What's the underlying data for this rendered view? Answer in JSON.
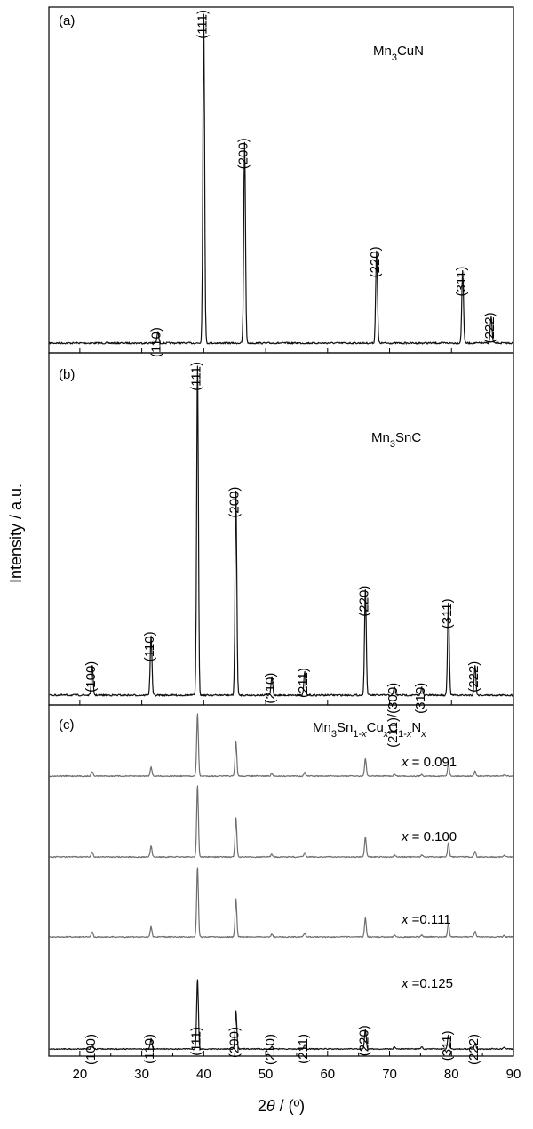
{
  "chart_data": {
    "type": "line",
    "x_axis": {
      "label_prefix": "2",
      "label_theta": "θ",
      "label_suffix": " / (º)",
      "range": [
        15,
        90
      ],
      "ticks": [
        20,
        30,
        40,
        50,
        60,
        70,
        80,
        90
      ]
    },
    "y_axis": {
      "label": "Intensity / a.u."
    },
    "colors": {
      "dark_trace": "#111111",
      "gray_trace": "#6e6e6e"
    },
    "panels": [
      {
        "tag": "(a)",
        "sample_parts": [
          {
            "t": "Mn",
            "sub": false
          },
          {
            "t": "3",
            "sub": true
          },
          {
            "t": "CuN",
            "sub": false
          }
        ],
        "peaks": [
          {
            "hkl": "(110)",
            "x": 32.6,
            "h": 0.035
          },
          {
            "hkl": "(111)",
            "x": 40.0,
            "h": 1.0
          },
          {
            "hkl": "(200)",
            "x": 46.6,
            "h": 0.61
          },
          {
            "hkl": "(220)",
            "x": 67.9,
            "h": 0.28
          },
          {
            "hkl": "(311)",
            "x": 81.8,
            "h": 0.22
          },
          {
            "hkl": "(222)",
            "x": 86.4,
            "h": 0.08
          }
        ]
      },
      {
        "tag": "(b)",
        "sample_parts": [
          {
            "t": "Mn",
            "sub": false
          },
          {
            "t": "3",
            "sub": true
          },
          {
            "t": "SnC",
            "sub": false
          }
        ],
        "peaks": [
          {
            "hkl": "(100)",
            "x": 22.0,
            "h": 0.09
          },
          {
            "hkl": "(110)",
            "x": 31.5,
            "h": 0.18
          },
          {
            "hkl": "(111)",
            "x": 39.0,
            "h": 1.0
          },
          {
            "hkl": "(200)",
            "x": 45.2,
            "h": 0.62
          },
          {
            "hkl": "(210)",
            "x": 51.0,
            "h": 0.055
          },
          {
            "hkl": "(211)",
            "x": 56.3,
            "h": 0.07
          },
          {
            "hkl": "(220)",
            "x": 66.1,
            "h": 0.32
          },
          {
            "hkl": "(211)/(300)",
            "x": 70.8,
            "h": 0.025
          },
          {
            "hkl": "(310)",
            "x": 75.2,
            "h": 0.025
          },
          {
            "hkl": "(311)",
            "x": 79.5,
            "h": 0.28
          },
          {
            "hkl": "(222)",
            "x": 83.8,
            "h": 0.09
          }
        ]
      },
      {
        "tag": "(c)",
        "sample_parts": [
          {
            "t": "Mn",
            "sub": false
          },
          {
            "t": "3",
            "sub": true
          },
          {
            "t": "Sn",
            "sub": false
          },
          {
            "t": "1-",
            "sub": true
          },
          {
            "t": "x",
            "sub": true,
            "italic": true
          },
          {
            "t": "Cu",
            "sub": false
          },
          {
            "t": "x",
            "sub": true,
            "italic": true
          },
          {
            "t": "C",
            "sub": false
          },
          {
            "t": "1-",
            "sub": true
          },
          {
            "t": "x",
            "sub": true,
            "italic": true
          },
          {
            "t": "N",
            "sub": false
          },
          {
            "t": "x",
            "sub": true,
            "italic": true
          }
        ],
        "series": [
          {
            "name": "x = 0.091",
            "var": "x",
            "text": " = 0.091",
            "color": "#6e6e6e"
          },
          {
            "name": "x = 0.100",
            "var": "x",
            "text": " = 0.100",
            "color": "#6e6e6e"
          },
          {
            "name": "x =0.111",
            "var": "x",
            "text": " =0.111",
            "color": "#6e6e6e"
          },
          {
            "name": "x =0.125",
            "var": "x",
            "text": " =0.125",
            "color": "#111111"
          }
        ],
        "peaks": [
          {
            "hkl": "(100)",
            "x": 22.0,
            "h": 0.07
          },
          {
            "hkl": "(110)",
            "x": 31.5,
            "h": 0.15
          },
          {
            "hkl": "(111)",
            "x": 39.0,
            "h": 1.0
          },
          {
            "hkl": "(200)",
            "x": 45.2,
            "h": 0.55
          },
          {
            "hkl": "(210)",
            "x": 51.0,
            "h": 0.04
          },
          {
            "hkl": "(211)",
            "x": 56.3,
            "h": 0.06
          },
          {
            "hkl": "(220)",
            "x": 66.1,
            "h": 0.28
          },
          {
            "hkl": "(311)",
            "x": 79.5,
            "h": 0.2
          },
          {
            "hkl": "(222)",
            "x": 83.8,
            "h": 0.08
          }
        ],
        "minor_peaks": [
          {
            "x": 70.8,
            "h": 0.03
          },
          {
            "x": 75.2,
            "h": 0.03
          },
          {
            "x": 88.5,
            "h": 0.02
          }
        ]
      }
    ]
  }
}
